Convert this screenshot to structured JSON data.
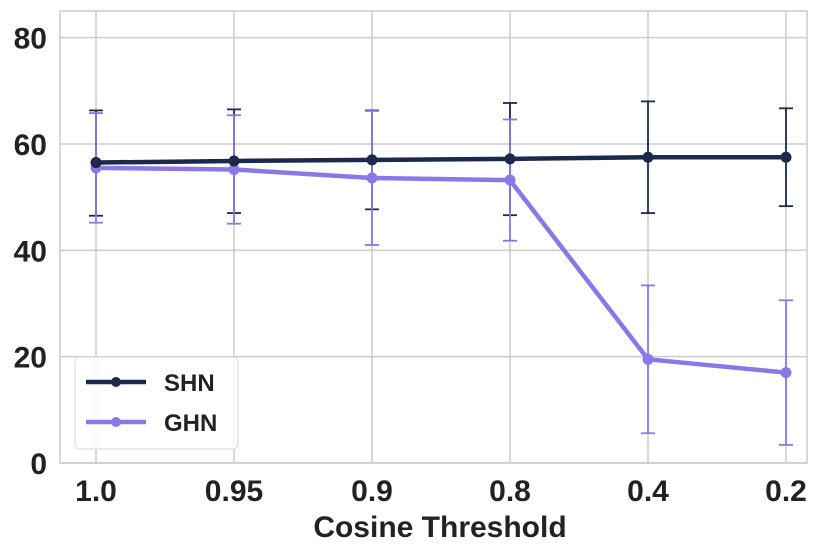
{
  "chart_data": {
    "type": "line",
    "title": "",
    "xlabel": "Cosine Threshold",
    "ylabel": "",
    "categories": [
      "1.0",
      "0.95",
      "0.9",
      "0.8",
      "0.4",
      "0.2"
    ],
    "ylim": [
      0,
      85
    ],
    "yticks": [
      "0",
      "20",
      "40",
      "60",
      "80"
    ],
    "grid": true,
    "legend_position": "bottom-left",
    "series": [
      {
        "name": "SHN",
        "color": "#1b2a4a",
        "values": [
          56.5,
          56.8,
          57.0,
          57.2,
          57.5,
          57.5
        ],
        "err_low": [
          46.5,
          47.0,
          47.7,
          46.6,
          47.0,
          48.3
        ],
        "err_high": [
          66.3,
          66.5,
          66.3,
          67.7,
          68.0,
          66.7
        ]
      },
      {
        "name": "GHN",
        "color": "#8b78e6",
        "values": [
          55.5,
          55.2,
          53.6,
          53.2,
          19.5,
          17.0
        ],
        "err_low": [
          45.2,
          45.0,
          41.0,
          41.8,
          5.6,
          3.4
        ],
        "err_high": [
          65.8,
          65.4,
          66.2,
          64.6,
          33.4,
          30.6
        ]
      }
    ]
  }
}
